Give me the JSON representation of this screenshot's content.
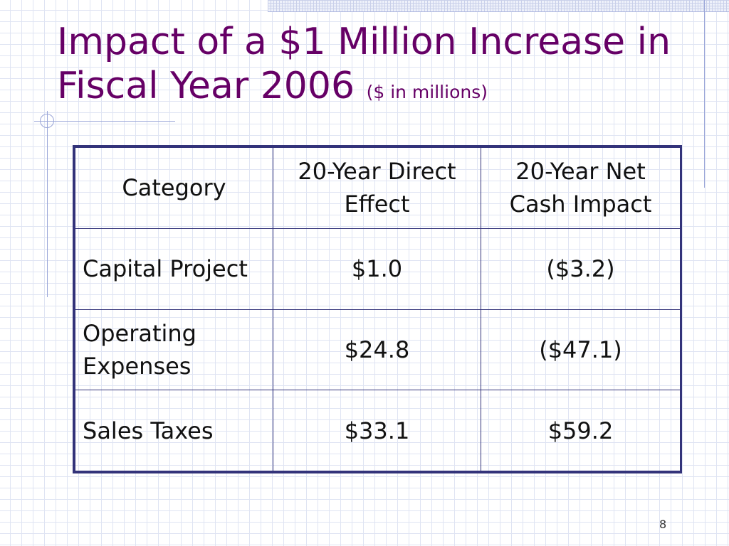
{
  "slide": {
    "title_main": "Impact of a $1 Million Increase in Fiscal Year 2006",
    "title_sub": "($ in millions)",
    "page_number": "8"
  },
  "table": {
    "headers": [
      "Category",
      "20-Year Direct Effect",
      "20-Year Net Cash Impact"
    ],
    "rows": [
      [
        "Capital Project",
        "$1.0",
        "($3.2)"
      ],
      [
        "Operating Expenses",
        "$24.8",
        "($47.1)"
      ],
      [
        "Sales Taxes",
        "$33.1",
        "$59.2"
      ]
    ]
  }
}
